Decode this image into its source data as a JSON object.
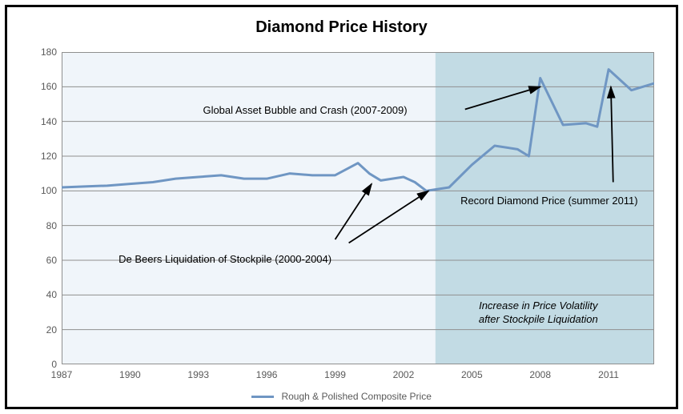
{
  "chart": {
    "type": "line",
    "title": "Diamond Price History",
    "title_fontsize": 20,
    "title_fontweight": "bold",
    "plot_bg_left": "#f0f5fa",
    "plot_bg_right": "#c2dbe4",
    "shade_split_x": 2003.4,
    "outer_border_color": "#000000",
    "plot_border_color": "#8f8f8f",
    "grid_color": "#8f8f8f",
    "axis_label_color": "#595959",
    "axis_label_fontsize": 12,
    "line_color": "#6f96c3",
    "line_width": 3,
    "xlim": [
      1987,
      2013
    ],
    "ylim": [
      0,
      180
    ],
    "ytick_step": 20,
    "yticks": [
      0,
      20,
      40,
      60,
      80,
      100,
      120,
      140,
      160,
      180
    ],
    "xticks": [
      1987,
      1990,
      1993,
      1996,
      1999,
      2002,
      2005,
      2008,
      2011
    ],
    "series_name": "Rough & Polished Composite Price",
    "data": [
      {
        "x": 1987,
        "y": 102
      },
      {
        "x": 1988,
        "y": 102.5
      },
      {
        "x": 1989,
        "y": 103
      },
      {
        "x": 1990,
        "y": 104
      },
      {
        "x": 1991,
        "y": 105
      },
      {
        "x": 1992,
        "y": 107
      },
      {
        "x": 1993,
        "y": 108
      },
      {
        "x": 1994,
        "y": 109
      },
      {
        "x": 1995,
        "y": 107
      },
      {
        "x": 1996,
        "y": 107
      },
      {
        "x": 1997,
        "y": 110
      },
      {
        "x": 1998,
        "y": 109
      },
      {
        "x": 1999,
        "y": 109
      },
      {
        "x": 2000,
        "y": 116
      },
      {
        "x": 2000.5,
        "y": 110
      },
      {
        "x": 2001,
        "y": 106
      },
      {
        "x": 2002,
        "y": 108
      },
      {
        "x": 2002.5,
        "y": 105
      },
      {
        "x": 2003,
        "y": 100
      },
      {
        "x": 2004,
        "y": 102
      },
      {
        "x": 2005,
        "y": 115
      },
      {
        "x": 2006,
        "y": 126
      },
      {
        "x": 2007,
        "y": 124
      },
      {
        "x": 2007.5,
        "y": 120
      },
      {
        "x": 2008,
        "y": 165
      },
      {
        "x": 2009,
        "y": 138
      },
      {
        "x": 2010,
        "y": 139
      },
      {
        "x": 2010.5,
        "y": 137
      },
      {
        "x": 2011,
        "y": 170
      },
      {
        "x": 2012,
        "y": 158
      },
      {
        "x": 2013,
        "y": 162
      }
    ],
    "annotations": {
      "bubble": {
        "text": "Global Asset Bubble and Crash (2007-2009)"
      },
      "debeers": {
        "text": "De Beers Liquidation of Stockpile (2000-2004)"
      },
      "record": {
        "text": "Record Diamond Price (summer 2011)"
      },
      "vol1": {
        "text": "Increase in Price Volatility"
      },
      "vol2": {
        "text": "after Stockpile Liquidation"
      }
    },
    "arrow_color": "#000000"
  }
}
